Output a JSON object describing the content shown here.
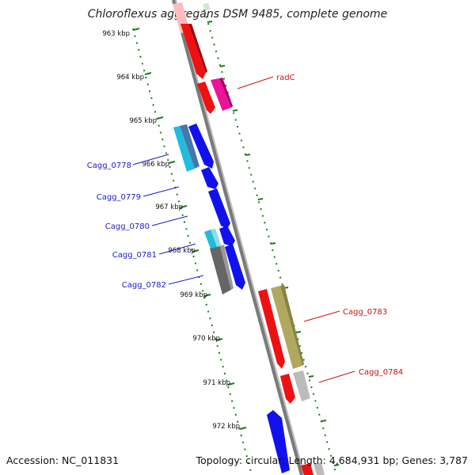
{
  "title": "Chloroflexus aggregans DSM 9485, complete genome",
  "footer": {
    "accession": "Accession: NC_011831",
    "topology": "Topology: circular; Length: 4,684,931 bp; Genes: 3,787"
  },
  "ruler": [
    "963 kbp",
    "964 kbp",
    "965 kbp",
    "966 kbp",
    "967 kbp",
    "968 kbp",
    "969 kbp",
    "970 kbp",
    "971 kbp",
    "972 kbp"
  ],
  "gene_labels": {
    "left": [
      "Cagg_0778",
      "Cagg_0779",
      "Cagg_0780",
      "Cagg_0781",
      "Cagg_0782"
    ],
    "right": [
      "radC",
      "Cagg_0783",
      "Cagg_0784"
    ]
  },
  "colors": {
    "backbone": "#808080",
    "tick_green": "#1e7a1e",
    "red": "#ee1111",
    "magenta": "#ee1199",
    "blue": "#1111ee",
    "cyan": "#22bbdd",
    "steel": "#4477aa",
    "olive": "#b0a860",
    "gray": "#666666",
    "lightgray": "#bbbbbb",
    "pink": "#ffbbbb",
    "label_blue": "#1a1acc",
    "label_red": "#d01010"
  }
}
